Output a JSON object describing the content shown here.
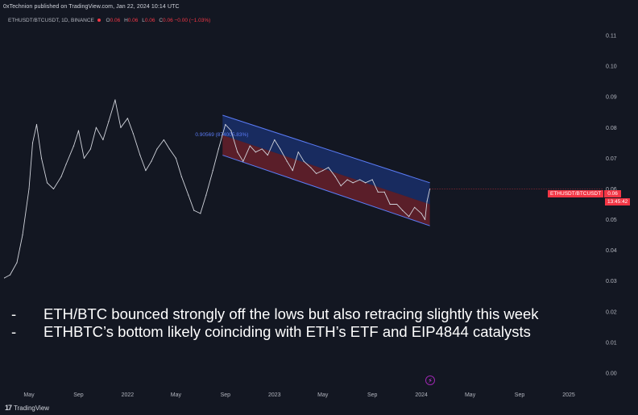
{
  "header": {
    "published": "0xTechnion published on TradingView.com, Jan 22, 2024 10:14 UTC",
    "symbol": "ETHUSDT/BTCUSDT, 1D, BINANCE",
    "o_label": "O",
    "o_value": "0.06",
    "h_label": "H",
    "h_value": "0.06",
    "l_label": "L",
    "l_value": "0.06",
    "c_label": "C",
    "c_value": "0.06",
    "change": "−0.00 (−1.03%)"
  },
  "price_label": {
    "symbol": "ETHUSDT/BTCUSDT",
    "price": "0.06",
    "countdown": "13:45:42"
  },
  "channel_label": "0.90569 (874005.83%)",
  "bullets": [
    {
      "mark": "-",
      "text": "ETH/BTC bounced strongly off the lows but also retracing slightly this week"
    },
    {
      "mark": "-",
      "text": "ETHBTC’s bottom likely coinciding with ETH’s ETF and EIP4844 catalysts"
    }
  ],
  "footer": {
    "logo": "17",
    "brand": "TradingView"
  },
  "chart_data": {
    "type": "line",
    "y_axis": {
      "ticks": [
        "0.11",
        "0.10",
        "0.09",
        "0.08",
        "0.07",
        "0.06",
        "0.05",
        "0.04",
        "0.03",
        "0.02",
        "0.01",
        "0.00"
      ],
      "ylim": [
        0,
        0.11
      ]
    },
    "x_axis": {
      "ticks": [
        "May",
        "Sep",
        "2022",
        "May",
        "Sep",
        "2023",
        "May",
        "Sep",
        "2024",
        "May",
        "Sep",
        "2025"
      ]
    },
    "colors": {
      "line": "#d1d4dc",
      "channel_upper": "#2962ff",
      "channel_lower": "#b22833",
      "price": "#f23645"
    },
    "series": [
      {
        "x": [
          "2021-03-01",
          "2021-03-15",
          "2021-04-01",
          "2021-04-15",
          "2021-05-01",
          "2021-05-10",
          "2021-05-20",
          "2021-06-01",
          "2021-06-15",
          "2021-07-01",
          "2021-07-20",
          "2021-08-01",
          "2021-08-20",
          "2021-09-01",
          "2021-09-15",
          "2021-10-01",
          "2021-10-15",
          "2021-11-01",
          "2021-11-15",
          "2021-12-01",
          "2021-12-15",
          "2022-01-01",
          "2022-01-15",
          "2022-02-01",
          "2022-02-15",
          "2022-03-01",
          "2022-03-15",
          "2022-04-01",
          "2022-04-15",
          "2022-05-01",
          "2022-05-15",
          "2022-06-01",
          "2022-06-15",
          "2022-07-01",
          "2022-07-15",
          "2022-08-01",
          "2022-08-15",
          "2022-09-01",
          "2022-09-15",
          "2022-10-01",
          "2022-10-15",
          "2022-11-01",
          "2022-11-15",
          "2022-12-01",
          "2022-12-15",
          "2023-01-01",
          "2023-01-15",
          "2023-02-01",
          "2023-02-15",
          "2023-03-01",
          "2023-03-15",
          "2023-04-01",
          "2023-04-15",
          "2023-05-01",
          "2023-05-15",
          "2023-06-01",
          "2023-06-15",
          "2023-07-01",
          "2023-07-15",
          "2023-08-01",
          "2023-08-15",
          "2023-09-01",
          "2023-09-15",
          "2023-10-01",
          "2023-10-15",
          "2023-11-01",
          "2023-11-15",
          "2023-12-01",
          "2023-12-15",
          "2024-01-01",
          "2024-01-10",
          "2024-01-15",
          "2024-01-22"
        ],
        "values": [
          0.031,
          0.032,
          0.036,
          0.045,
          0.06,
          0.075,
          0.081,
          0.07,
          0.062,
          0.06,
          0.064,
          0.068,
          0.074,
          0.079,
          0.07,
          0.073,
          0.08,
          0.076,
          0.082,
          0.089,
          0.08,
          0.083,
          0.078,
          0.071,
          0.066,
          0.069,
          0.073,
          0.076,
          0.073,
          0.07,
          0.064,
          0.058,
          0.053,
          0.052,
          0.058,
          0.066,
          0.073,
          0.081,
          0.079,
          0.072,
          0.069,
          0.074,
          0.072,
          0.073,
          0.071,
          0.076,
          0.073,
          0.069,
          0.066,
          0.072,
          0.069,
          0.067,
          0.065,
          0.066,
          0.067,
          0.064,
          0.061,
          0.063,
          0.062,
          0.063,
          0.062,
          0.063,
          0.059,
          0.059,
          0.055,
          0.055,
          0.053,
          0.051,
          0.054,
          0.052,
          0.05,
          0.056,
          0.06
        ]
      }
    ],
    "channel": {
      "upper": [
        [
          "2022-08-25",
          0.084
        ],
        [
          "2024-01-22",
          0.062
        ]
      ],
      "mid": [
        [
          "2022-08-25",
          0.0775
        ],
        [
          "2024-01-22",
          0.055
        ]
      ],
      "lower": [
        [
          "2022-08-25",
          0.071
        ],
        [
          "2024-01-22",
          0.048
        ]
      ]
    }
  }
}
